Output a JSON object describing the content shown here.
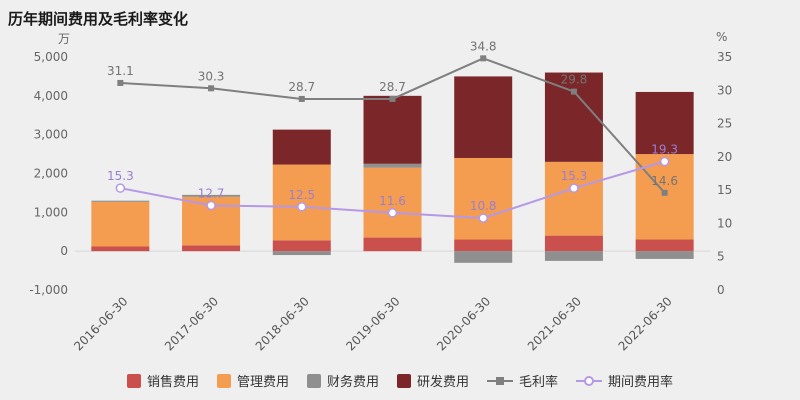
{
  "title": "历年期间费用及毛利率变化",
  "left_axis": {
    "unit": "万",
    "min": -1000,
    "max": 5000,
    "tick_values": [
      5000,
      4000,
      3000,
      2000,
      1000,
      0,
      -1000
    ],
    "tick_labels": [
      "5,000",
      "4,000",
      "3,000",
      "2,000",
      "1,000",
      "0",
      "-1,000"
    ]
  },
  "right_axis": {
    "unit": "%",
    "min": 0,
    "max": 35,
    "tick_values": [
      35,
      30,
      25,
      20,
      15,
      10,
      5,
      0
    ],
    "tick_labels": [
      "35",
      "30",
      "25",
      "20",
      "15",
      "10",
      "5",
      "0"
    ]
  },
  "chart_data": {
    "type": "bar",
    "subtype": "stacked-bar-with-lines",
    "categories": [
      "2016-06-30",
      "2017-06-30",
      "2018-06-30",
      "2019-06-30",
      "2020-06-30",
      "2021-06-30",
      "2022-06-30"
    ],
    "bar_series": [
      {
        "name": "销售费用",
        "color": "#c9504c",
        "values": [
          120,
          150,
          280,
          350,
          300,
          400,
          300
        ]
      },
      {
        "name": "管理费用",
        "color": "#f49d50",
        "values": [
          1150,
          1250,
          1950,
          1800,
          2100,
          1900,
          2200
        ]
      },
      {
        "name": "财务费用",
        "color": "#8f8f8f",
        "values": [
          30,
          50,
          -100,
          100,
          -300,
          -250,
          -200
        ]
      },
      {
        "name": "研发费用",
        "color": "#7b2729",
        "values": [
          0,
          0,
          900,
          1750,
          2100,
          2300,
          1600
        ]
      }
    ],
    "line_series": [
      {
        "name": "毛利率",
        "color": "#7f7f7f",
        "label_color": "#737373",
        "marker": "square",
        "values": [
          31.1,
          30.3,
          28.7,
          28.7,
          34.8,
          29.8,
          14.6
        ]
      },
      {
        "name": "期间费用率",
        "color": "#b598e6",
        "label_color": "#9a7fd1",
        "marker": "circle",
        "values": [
          15.3,
          12.7,
          12.5,
          11.6,
          10.8,
          15.3,
          19.3
        ]
      }
    ]
  },
  "legend": {
    "items": [
      {
        "label": "销售费用",
        "type": "rect",
        "color": "#c9504c"
      },
      {
        "label": "管理费用",
        "type": "rect",
        "color": "#f49d50"
      },
      {
        "label": "财务费用",
        "type": "rect",
        "color": "#8f8f8f"
      },
      {
        "label": "研发费用",
        "type": "rect",
        "color": "#7b2729"
      },
      {
        "label": "毛利率",
        "type": "line-square",
        "color": "#7f7f7f"
      },
      {
        "label": "期间费用率",
        "type": "line-circle",
        "color": "#b598e6"
      }
    ]
  }
}
